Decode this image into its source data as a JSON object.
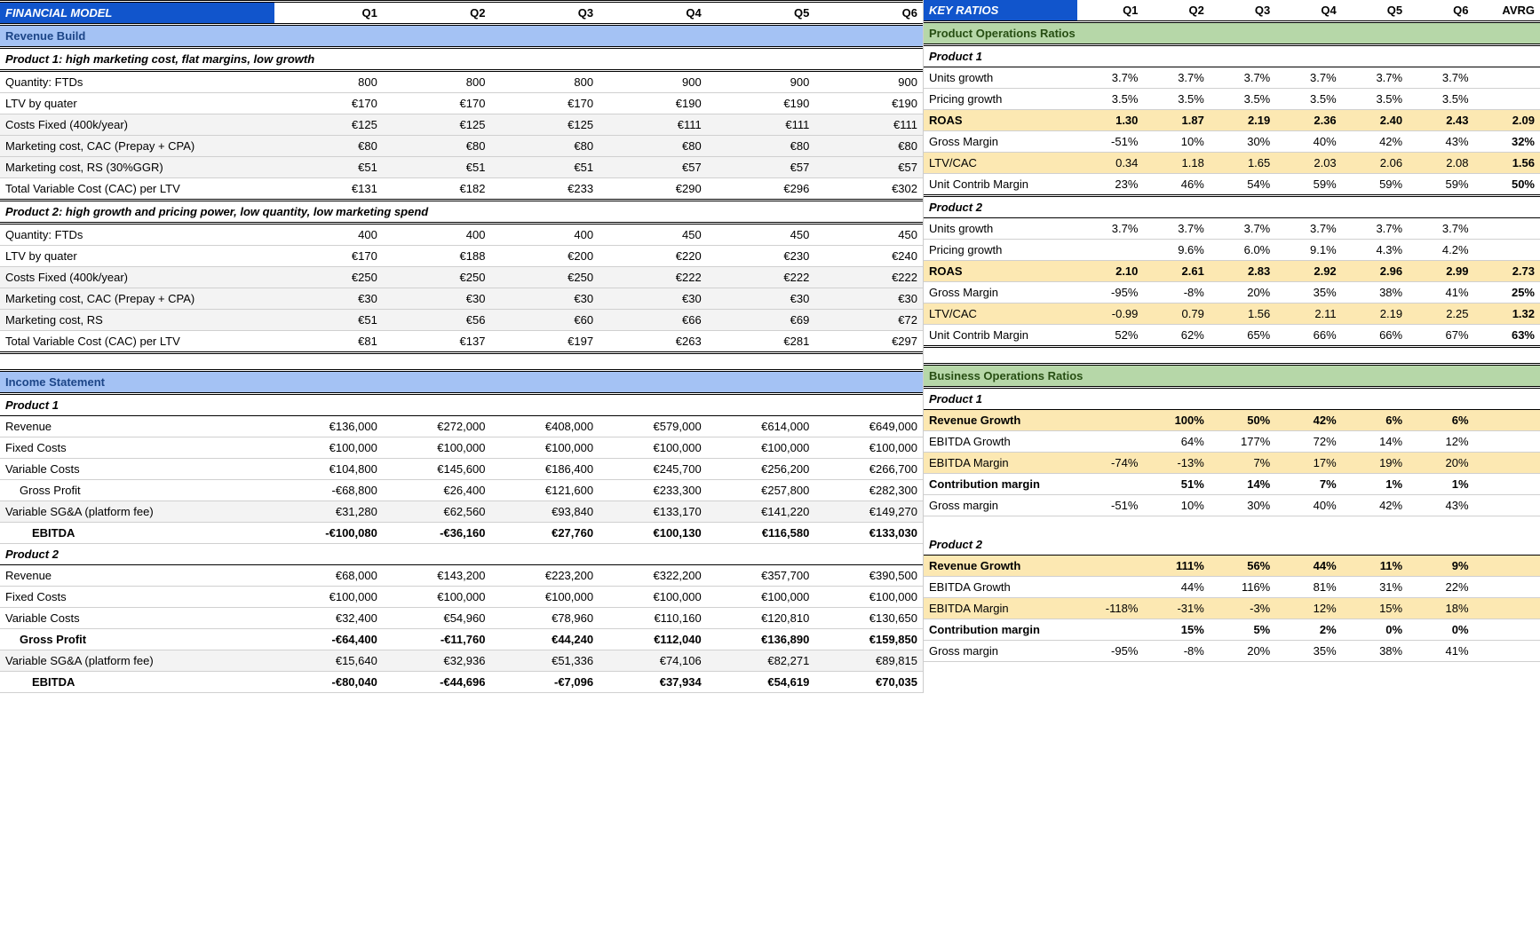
{
  "colors": {
    "header_blue": "#1155cc",
    "section_blue": "#a4c2f4",
    "section_green": "#b6d7a8",
    "highlight_yellow": "#fce8b2",
    "shade_grey": "#f3f3f3",
    "border": "#d0d0d0"
  },
  "left": {
    "title": "FINANCIAL MODEL",
    "quarters": [
      "Q1",
      "Q2",
      "Q3",
      "Q4",
      "Q5",
      "Q6"
    ],
    "sections": [
      {
        "kind": "section",
        "label": "Revenue Build"
      },
      {
        "kind": "sub",
        "label": "Product 1: high marketing cost, flat margins, low growth"
      },
      {
        "kind": "row",
        "label": "Quantity: FTDs",
        "vals": [
          "800",
          "800",
          "800",
          "900",
          "900",
          "900"
        ]
      },
      {
        "kind": "row",
        "label": "LTV by quater",
        "vals": [
          "€170",
          "€170",
          "€170",
          "€190",
          "€190",
          "€190"
        ]
      },
      {
        "kind": "row",
        "shade": true,
        "label": "Costs Fixed (400k/year)",
        "vals": [
          "€125",
          "€125",
          "€125",
          "€111",
          "€111",
          "€111"
        ]
      },
      {
        "kind": "row",
        "shade": true,
        "label": "Marketing cost, CAC (Prepay + CPA)",
        "vals": [
          "€80",
          "€80",
          "€80",
          "€80",
          "€80",
          "€80"
        ]
      },
      {
        "kind": "row",
        "shade": true,
        "label": "Marketing cost, RS (30%GGR)",
        "vals": [
          "€51",
          "€51",
          "€51",
          "€57",
          "€57",
          "€57"
        ]
      },
      {
        "kind": "row",
        "doubleb": true,
        "label": "Total Variable Cost (CAC) per LTV",
        "vals": [
          "€131",
          "€182",
          "€233",
          "€290",
          "€296",
          "€302"
        ]
      },
      {
        "kind": "sub",
        "label": "Product 2: high growth and pricing power, low quantity, low marketing spend"
      },
      {
        "kind": "row",
        "label": "Quantity: FTDs",
        "vals": [
          "400",
          "400",
          "400",
          "450",
          "450",
          "450"
        ]
      },
      {
        "kind": "row",
        "label": "LTV by quater",
        "vals": [
          "€170",
          "€188",
          "€200",
          "€220",
          "€230",
          "€240"
        ]
      },
      {
        "kind": "row",
        "shade": true,
        "label": "Costs Fixed (400k/year)",
        "vals": [
          "€250",
          "€250",
          "€250",
          "€222",
          "€222",
          "€222"
        ]
      },
      {
        "kind": "row",
        "shade": true,
        "label": "Marketing cost, CAC (Prepay + CPA)",
        "vals": [
          "€30",
          "€30",
          "€30",
          "€30",
          "€30",
          "€30"
        ]
      },
      {
        "kind": "row",
        "shade": true,
        "label": "Marketing cost, RS",
        "vals": [
          "€51",
          "€56",
          "€60",
          "€66",
          "€69",
          "€72"
        ]
      },
      {
        "kind": "row",
        "doubleb": true,
        "label": "Total Variable Cost (CAC) per LTV",
        "vals": [
          "€81",
          "€137",
          "€197",
          "€263",
          "€281",
          "€297"
        ]
      },
      {
        "kind": "blank"
      },
      {
        "kind": "section",
        "label": "Income Statement"
      },
      {
        "kind": "sub2",
        "label": "Product 1"
      },
      {
        "kind": "row",
        "label": "Revenue",
        "vals": [
          "€136,000",
          "€272,000",
          "€408,000",
          "€579,000",
          "€614,000",
          "€649,000"
        ]
      },
      {
        "kind": "row",
        "label": "Fixed Costs",
        "vals": [
          "€100,000",
          "€100,000",
          "€100,000",
          "€100,000",
          "€100,000",
          "€100,000"
        ]
      },
      {
        "kind": "row",
        "label": "Variable Costs",
        "vals": [
          "€104,800",
          "€145,600",
          "€186,400",
          "€245,700",
          "€256,200",
          "€266,700"
        ]
      },
      {
        "kind": "row",
        "indent": 1,
        "label": "Gross Profit",
        "vals": [
          "-€68,800",
          "€26,400",
          "€121,600",
          "€233,300",
          "€257,800",
          "€282,300"
        ]
      },
      {
        "kind": "row",
        "shade": true,
        "label": "Variable SG&A (platform fee)",
        "vals": [
          "€31,280",
          "€62,560",
          "€93,840",
          "€133,170",
          "€141,220",
          "€149,270"
        ]
      },
      {
        "kind": "row",
        "bold": true,
        "indent": 2,
        "label": "EBITDA",
        "vals": [
          "-€100,080",
          "-€36,160",
          "€27,760",
          "€100,130",
          "€116,580",
          "€133,030"
        ]
      },
      {
        "kind": "sub2",
        "label": "Product 2"
      },
      {
        "kind": "row",
        "label": "Revenue",
        "vals": [
          "€68,000",
          "€143,200",
          "€223,200",
          "€322,200",
          "€357,700",
          "€390,500"
        ]
      },
      {
        "kind": "row",
        "label": "Fixed Costs",
        "vals": [
          "€100,000",
          "€100,000",
          "€100,000",
          "€100,000",
          "€100,000",
          "€100,000"
        ]
      },
      {
        "kind": "row",
        "label": "Variable Costs",
        "vals": [
          "€32,400",
          "€54,960",
          "€78,960",
          "€110,160",
          "€120,810",
          "€130,650"
        ]
      },
      {
        "kind": "row",
        "bold": true,
        "indent": 1,
        "label": "Gross Profit",
        "vals": [
          "-€64,400",
          "-€11,760",
          "€44,240",
          "€112,040",
          "€136,890",
          "€159,850"
        ]
      },
      {
        "kind": "row",
        "shade": true,
        "label": "Variable SG&A (platform fee)",
        "vals": [
          "€15,640",
          "€32,936",
          "€51,336",
          "€74,106",
          "€82,271",
          "€89,815"
        ]
      },
      {
        "kind": "row",
        "bold": true,
        "indent": 2,
        "label": "EBITDA",
        "vals": [
          "-€80,040",
          "-€44,696",
          "-€7,096",
          "€37,934",
          "€54,619",
          "€70,035"
        ]
      }
    ]
  },
  "right": {
    "title": "KEY RATIOS",
    "quarters": [
      "Q1",
      "Q2",
      "Q3",
      "Q4",
      "Q5",
      "Q6"
    ],
    "avg_lbl": "AVRG",
    "sections": [
      {
        "kind": "sectiong",
        "label": "Product Operations Ratios"
      },
      {
        "kind": "sub2",
        "label": "Product 1"
      },
      {
        "kind": "rrow",
        "label": "Units growth",
        "vals": [
          "3.7%",
          "3.7%",
          "3.7%",
          "3.7%",
          "3.7%",
          "3.7%",
          ""
        ]
      },
      {
        "kind": "rrow",
        "label": "Pricing growth",
        "vals": [
          "3.5%",
          "3.5%",
          "3.5%",
          "3.5%",
          "3.5%",
          "3.5%",
          ""
        ]
      },
      {
        "kind": "rrow",
        "yellow": true,
        "bold": true,
        "label": "ROAS",
        "vals": [
          "1.30",
          "1.87",
          "2.19",
          "2.36",
          "2.40",
          "2.43",
          "2.09"
        ]
      },
      {
        "kind": "rrow",
        "label": "Gross Margin",
        "vals": [
          "-51%",
          "10%",
          "30%",
          "40%",
          "42%",
          "43%",
          "32%"
        ],
        "boldlast": true
      },
      {
        "kind": "rrow",
        "yellow": true,
        "label": "LTV/CAC",
        "vals": [
          "0.34",
          "1.18",
          "1.65",
          "2.03",
          "2.06",
          "2.08",
          "1.56"
        ],
        "boldlast": true
      },
      {
        "kind": "rrow",
        "doubleb": true,
        "label": "Unit Contrib Margin",
        "vals": [
          "23%",
          "46%",
          "54%",
          "59%",
          "59%",
          "59%",
          "50%"
        ],
        "boldlast": true
      },
      {
        "kind": "sub2",
        "label": "Product 2"
      },
      {
        "kind": "rrow",
        "label": "Units growth",
        "vals": [
          "3.7%",
          "3.7%",
          "3.7%",
          "3.7%",
          "3.7%",
          "3.7%",
          ""
        ]
      },
      {
        "kind": "rrow",
        "label": "Pricing growth",
        "vals": [
          "",
          "9.6%",
          "6.0%",
          "9.1%",
          "4.3%",
          "4.2%",
          ""
        ]
      },
      {
        "kind": "rrow",
        "yellow": true,
        "bold": true,
        "label": "ROAS",
        "vals": [
          "2.10",
          "2.61",
          "2.83",
          "2.92",
          "2.96",
          "2.99",
          "2.73"
        ]
      },
      {
        "kind": "rrow",
        "label": "Gross Margin",
        "vals": [
          "-95%",
          "-8%",
          "20%",
          "35%",
          "38%",
          "41%",
          "25%"
        ],
        "boldlast": true
      },
      {
        "kind": "rrow",
        "yellow": true,
        "label": "LTV/CAC",
        "vals": [
          "-0.99",
          "0.79",
          "1.56",
          "2.11",
          "2.19",
          "2.25",
          "1.32"
        ],
        "boldlast": true
      },
      {
        "kind": "rrow",
        "doubleb": true,
        "label": "Unit Contrib Margin",
        "vals": [
          "52%",
          "62%",
          "65%",
          "66%",
          "66%",
          "67%",
          "63%"
        ],
        "boldlast": true
      },
      {
        "kind": "blank"
      },
      {
        "kind": "sectiong",
        "label": "Business Operations Ratios"
      },
      {
        "kind": "sub2",
        "label": "Product 1"
      },
      {
        "kind": "rrow",
        "yellow": true,
        "bold": true,
        "label": "Revenue Growth",
        "vals": [
          "",
          "100%",
          "50%",
          "42%",
          "6%",
          "6%",
          ""
        ]
      },
      {
        "kind": "rrow",
        "label": "EBITDA Growth",
        "vals": [
          "",
          "64%",
          "177%",
          "72%",
          "14%",
          "12%",
          ""
        ]
      },
      {
        "kind": "rrow",
        "yellow": true,
        "label": "EBITDA Margin",
        "vals": [
          "-74%",
          "-13%",
          "7%",
          "17%",
          "19%",
          "20%",
          ""
        ]
      },
      {
        "kind": "rrow",
        "bold": true,
        "label": "Contribution margin",
        "vals": [
          "",
          "51%",
          "14%",
          "7%",
          "1%",
          "1%",
          ""
        ]
      },
      {
        "kind": "rrow",
        "label": "Gross margin",
        "vals": [
          "-51%",
          "10%",
          "30%",
          "40%",
          "42%",
          "43%",
          ""
        ]
      },
      {
        "kind": "blank"
      },
      {
        "kind": "sub2",
        "label": "Product 2"
      },
      {
        "kind": "rrow",
        "yellow": true,
        "bold": true,
        "label": "Revenue Growth",
        "vals": [
          "",
          "111%",
          "56%",
          "44%",
          "11%",
          "9%",
          ""
        ]
      },
      {
        "kind": "rrow",
        "label": "EBITDA Growth",
        "vals": [
          "",
          "44%",
          "116%",
          "81%",
          "31%",
          "22%",
          ""
        ]
      },
      {
        "kind": "rrow",
        "yellow": true,
        "label": "EBITDA Margin",
        "vals": [
          "-118%",
          "-31%",
          "-3%",
          "12%",
          "15%",
          "18%",
          ""
        ]
      },
      {
        "kind": "rrow",
        "bold": true,
        "label": "Contribution margin",
        "vals": [
          "",
          "15%",
          "5%",
          "2%",
          "0%",
          "0%",
          ""
        ]
      },
      {
        "kind": "rrow",
        "label": "Gross margin",
        "vals": [
          "-95%",
          "-8%",
          "20%",
          "35%",
          "38%",
          "41%",
          ""
        ]
      }
    ]
  }
}
